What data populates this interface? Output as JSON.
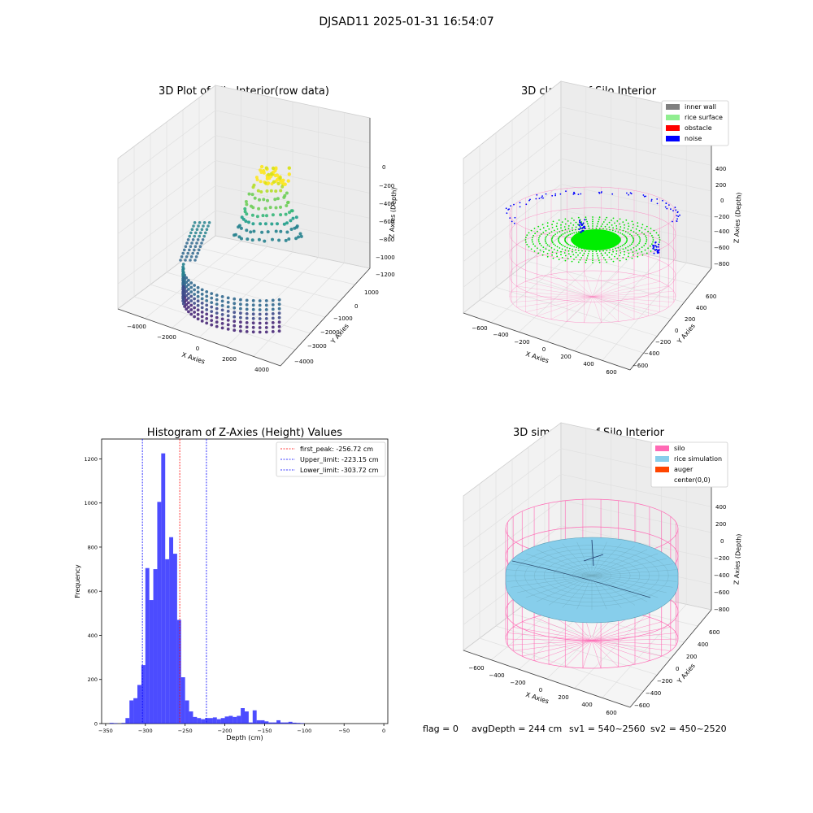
{
  "suptitle": "DJSAD11 2025-01-31 16:54:07",
  "footer": {
    "flag": "flag = 0",
    "avg_depth": "avgDepth = 244 cm",
    "sv1": "sv1 = 540~2560",
    "sv2": "sv2 = 450~2520"
  },
  "colors": {
    "silo": "#ff69b4",
    "rice_simulation": "#87ceeb",
    "auger": "#ff4500",
    "inner_wall": "#808080",
    "rice_surface": "#90ee90",
    "obstacle": "#ff0000",
    "noise": "#0000ff",
    "histogram": "#0000ff",
    "first_peak_line": "#ff0000",
    "limit_lines": "#0000ff"
  },
  "chart_data": [
    {
      "type": "scatter",
      "title": "3D Plot of Silo Interior(row data)",
      "xlabel": "X Axies",
      "ylabel": "Y Axies",
      "zlabel": "Z Axies (Depth)",
      "x_ticks": [
        "−4000",
        "−2000",
        "0",
        "2000",
        "4000"
      ],
      "y_ticks": [
        "1000",
        "0",
        "−1000",
        "−2000",
        "−3000",
        "−4000"
      ],
      "z_ticks": [
        "0",
        "−200",
        "−400",
        "−600",
        "−800",
        "−1000",
        "−1200"
      ],
      "zlim": [
        -1250,
        50
      ],
      "grid": true,
      "colormap": "viridis"
    },
    {
      "type": "scatter",
      "title": "3D classify of Silo Interior",
      "xlabel": "X Axies",
      "ylabel": "Y Axies",
      "zlabel": "Z Axies (Depth)",
      "x_ticks": [
        "−600",
        "−400",
        "−200",
        "0",
        "200",
        "400",
        "600"
      ],
      "y_ticks": [
        "600",
        "400",
        "200",
        "0",
        "−200",
        "−400",
        "−600"
      ],
      "z_ticks": [
        "400",
        "200",
        "0",
        "−200",
        "−400",
        "−600",
        "−800"
      ],
      "legend": [
        "inner wall",
        "rice surface",
        "obstacle",
        "noise"
      ],
      "legend_position": "top-right",
      "grid": true
    },
    {
      "type": "bar",
      "title": "Histogram of Z-Axies (Height) Values",
      "xlabel": "Depth (cm)",
      "ylabel": "Frequency",
      "xlim": [
        -355,
        5
      ],
      "ylim": [
        0,
        1290
      ],
      "x_ticks": [
        -350,
        -300,
        -250,
        -200,
        -150,
        -100,
        -50,
        0
      ],
      "x_tick_labels": [
        "−350",
        "−300",
        "−250",
        "−200",
        "−150",
        "−100",
        "−50",
        "0"
      ],
      "y_ticks": [
        0,
        200,
        400,
        600,
        800,
        1000,
        1200
      ],
      "bin_width": 5,
      "bins": [
        [
          -345,
          3
        ],
        [
          -340,
          2
        ],
        [
          -335,
          0
        ],
        [
          -330,
          3
        ],
        [
          -325,
          25
        ],
        [
          -320,
          105
        ],
        [
          -315,
          115
        ],
        [
          -310,
          175
        ],
        [
          -305,
          265
        ],
        [
          -300,
          705
        ],
        [
          -295,
          560
        ],
        [
          -290,
          700
        ],
        [
          -285,
          1005
        ],
        [
          -280,
          1225
        ],
        [
          -275,
          745
        ],
        [
          -270,
          845
        ],
        [
          -265,
          770
        ],
        [
          -260,
          470
        ],
        [
          -255,
          210
        ],
        [
          -250,
          105
        ],
        [
          -245,
          55
        ],
        [
          -240,
          30
        ],
        [
          -235,
          25
        ],
        [
          -230,
          20
        ],
        [
          -225,
          25
        ],
        [
          -220,
          25
        ],
        [
          -215,
          28
        ],
        [
          -210,
          20
        ],
        [
          -205,
          25
        ],
        [
          -200,
          32
        ],
        [
          -195,
          35
        ],
        [
          -190,
          30
        ],
        [
          -185,
          35
        ],
        [
          -180,
          70
        ],
        [
          -175,
          55
        ],
        [
          -170,
          5
        ],
        [
          -165,
          60
        ],
        [
          -160,
          15
        ],
        [
          -155,
          15
        ],
        [
          -150,
          10
        ],
        [
          -145,
          5
        ],
        [
          -140,
          5
        ],
        [
          -135,
          15
        ],
        [
          -130,
          5
        ],
        [
          -125,
          5
        ],
        [
          -120,
          8
        ],
        [
          -115,
          4
        ],
        [
          -110,
          3
        ],
        [
          -105,
          2
        ]
      ],
      "lines": [
        {
          "label": "first_peak: -256.72 cm",
          "value": -256.72,
          "color": "#ff0000"
        },
        {
          "label": "Upper_limit: -223.15 cm",
          "value": -223.15,
          "color": "#0000ff"
        },
        {
          "label": "Lower_limit: -303.72 cm",
          "value": -303.72,
          "color": "#0000ff"
        }
      ],
      "legend_position": "top-right"
    },
    {
      "type": "scatter",
      "title": "3D simulation of Silo Interior",
      "xlabel": "X Axies",
      "ylabel": "Y Axies",
      "zlabel": "Z Axies (Depth)",
      "x_ticks": [
        "−600",
        "−400",
        "−200",
        "0",
        "200",
        "400",
        "600"
      ],
      "y_ticks": [
        "600",
        "400",
        "200",
        "0",
        "−200",
        "−400",
        "−600"
      ],
      "z_ticks": [
        "400",
        "200",
        "0",
        "−200",
        "−400",
        "−600",
        "−800"
      ],
      "legend": [
        "silo",
        "rice simulation",
        "auger",
        "center(0,0)"
      ],
      "legend_position": "top-right",
      "grid": true
    }
  ]
}
